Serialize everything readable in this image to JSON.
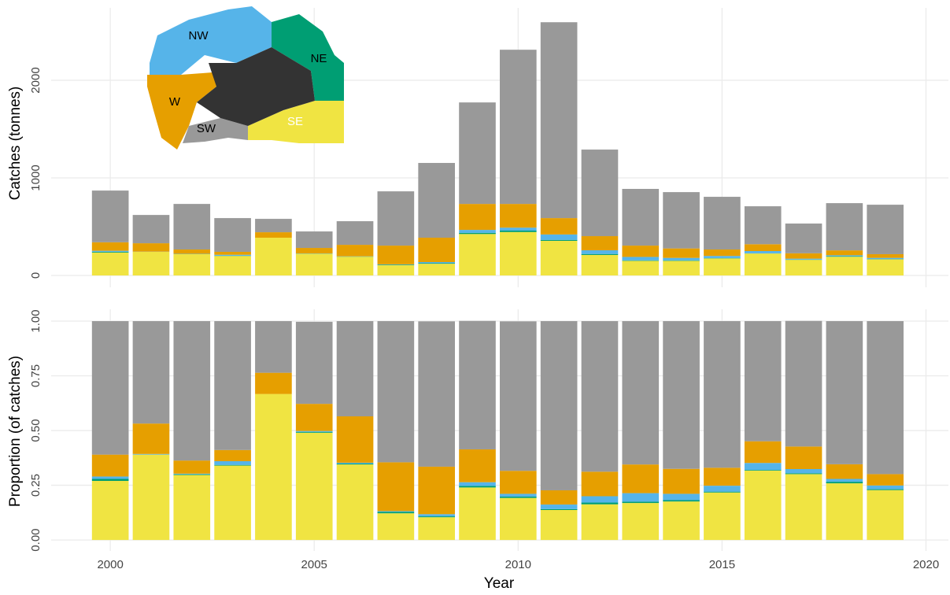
{
  "chart_data": [
    {
      "type": "bar",
      "stacked": true,
      "ylabel": "Catches (tonnes)",
      "x": [
        2000,
        2001,
        2002,
        2003,
        2004,
        2005,
        2006,
        2007,
        2008,
        2009,
        2010,
        2011,
        2012,
        2013,
        2014,
        2015,
        2016,
        2017,
        2018,
        2019
      ],
      "xlim": [
        1998.55,
        2020.55
      ],
      "xticks": [
        2000,
        2005,
        2010,
        2015,
        2020
      ],
      "ylim": [
        -121,
        2742
      ],
      "yticks": [
        0,
        1000,
        2000
      ],
      "grid": true,
      "series": [
        {
          "name": "SE",
          "color": "#f0e442",
          "values": [
            235,
            242,
            218,
            200,
            387,
            222,
            192,
            105,
            120,
            425,
            445,
            355,
            210,
            150,
            150,
            175,
            225,
            160,
            192,
            165
          ]
        },
        {
          "name": "NE",
          "color": "#009e73",
          "values": [
            8,
            0,
            2,
            2,
            0,
            2,
            2,
            6,
            5,
            12,
            15,
            10,
            10,
            5,
            5,
            3,
            2,
            2,
            5,
            3
          ]
        },
        {
          "name": "NW",
          "color": "#56b4e9",
          "values": [
            10,
            2,
            2,
            10,
            0,
            2,
            2,
            3,
            12,
            30,
            30,
            55,
            38,
            35,
            25,
            22,
            23,
            10,
            10,
            12
          ]
        },
        {
          "name": "W",
          "color": "#e69f00",
          "values": [
            87,
            86,
            44,
            30,
            56,
            56,
            118,
            192,
            250,
            266,
            243,
            168,
            145,
            116,
            97,
            66,
            70,
            55,
            50,
            38
          ]
        },
        {
          "name": "SW",
          "color": "#999999",
          "values": [
            530,
            290,
            467,
            346,
            137,
            169,
            242,
            556,
            766,
            1040,
            1580,
            2007,
            887,
            581,
            577,
            540,
            389,
            305,
            484,
            507
          ]
        }
      ]
    },
    {
      "type": "bar",
      "stacked": true,
      "ylabel": "Proportion (of catches)",
      "xlabel": "Year",
      "x": [
        2000,
        2001,
        2002,
        2003,
        2004,
        2005,
        2006,
        2007,
        2008,
        2009,
        2010,
        2011,
        2012,
        2013,
        2014,
        2015,
        2016,
        2017,
        2018,
        2019
      ],
      "xlim": [
        1998.55,
        2020.55
      ],
      "xticks": [
        2000,
        2005,
        2010,
        2015,
        2020
      ],
      "ylim": [
        -0.05,
        1.054
      ],
      "grid": true,
      "yticks": [
        {
          "value": 0,
          "label": "0.00"
        },
        {
          "value": 0.25,
          "label": "0.25"
        },
        {
          "value": 0.5,
          "label": "0.50"
        },
        {
          "value": 0.75,
          "label": "0.75"
        },
        {
          "value": 1,
          "label": "1.00"
        }
      ],
      "series": [
        {
          "name": "SE",
          "color": "#f0e442",
          "values": [
            0.27,
            0.39,
            0.297,
            0.34,
            0.667,
            0.49,
            0.345,
            0.122,
            0.104,
            0.24,
            0.192,
            0.137,
            0.163,
            0.169,
            0.176,
            0.217,
            0.317,
            0.301,
            0.259,
            0.228
          ]
        },
        {
          "name": "NE",
          "color": "#009e73",
          "values": [
            0.009,
            0,
            0.003,
            0.003,
            0,
            0.004,
            0.004,
            0.007,
            0.004,
            0.007,
            0.006,
            0.004,
            0.008,
            0.006,
            0.006,
            0.004,
            0.003,
            0.004,
            0.007,
            0.004
          ]
        },
        {
          "name": "NW",
          "color": "#56b4e9",
          "values": [
            0.011,
            0.003,
            0.003,
            0.017,
            0,
            0.004,
            0.004,
            0.003,
            0.01,
            0.017,
            0.013,
            0.021,
            0.029,
            0.039,
            0.029,
            0.027,
            0.032,
            0.019,
            0.013,
            0.017
          ]
        },
        {
          "name": "W",
          "color": "#e69f00",
          "values": [
            0.1,
            0.139,
            0.06,
            0.051,
            0.097,
            0.124,
            0.212,
            0.223,
            0.217,
            0.15,
            0.105,
            0.065,
            0.112,
            0.131,
            0.114,
            0.082,
            0.099,
            0.103,
            0.067,
            0.052
          ]
        },
        {
          "name": "SW",
          "color": "#999999",
          "values": [
            0.61,
            0.468,
            0.637,
            0.589,
            0.236,
            0.375,
            0.435,
            0.645,
            0.664,
            0.587,
            0.683,
            0.773,
            0.688,
            0.655,
            0.675,
            0.67,
            0.549,
            0.574,
            0.654,
            0.699
          ]
        }
      ]
    }
  ]
}
